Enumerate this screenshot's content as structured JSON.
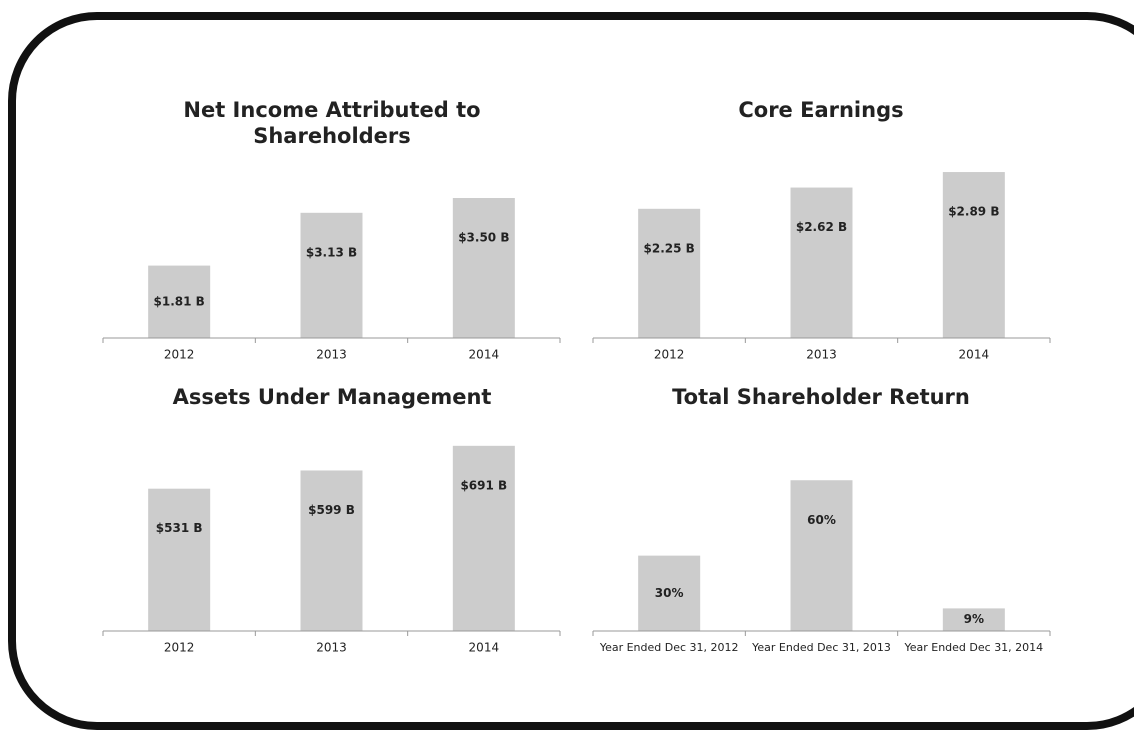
{
  "chart_data": [
    {
      "type": "bar",
      "title": "Net Income Attributed to Shareholders",
      "categories": [
        "2012",
        "2013",
        "2014"
      ],
      "values": [
        1.81,
        3.13,
        3.5
      ],
      "value_labels": [
        "$1.81 B",
        "$3.13 B",
        "$3.50 B"
      ],
      "color": "#cccccc",
      "ylim": [
        0,
        4.45
      ]
    },
    {
      "type": "bar",
      "title": "Core Earnings",
      "categories": [
        "2012",
        "2013",
        "2014"
      ],
      "values": [
        2.25,
        2.62,
        2.89
      ],
      "value_labels": [
        "$2.25 B",
        "$2.62 B",
        "$2.89 B"
      ],
      "color": "#cccccc",
      "ylim": [
        0,
        3.1
      ]
    },
    {
      "type": "bar",
      "title": "Assets Under Management",
      "categories": [
        "2012",
        "2013",
        "2014"
      ],
      "values": [
        531,
        599,
        691
      ],
      "value_labels": [
        "$531 B",
        "$599 B",
        "$691 B"
      ],
      "color": "#cccccc",
      "ylim": [
        0,
        750
      ]
    },
    {
      "type": "bar",
      "title": "Total Shareholder Return",
      "categories": [
        "Year Ended Dec 31, 2012",
        "Year Ended Dec 31, 2013",
        "Year Ended Dec 31, 2014"
      ],
      "values": [
        30,
        60,
        9
      ],
      "value_labels": [
        "30%",
        "60%",
        "9%"
      ],
      "color": "#cccccc",
      "ylim": [
        0,
        80
      ]
    }
  ]
}
